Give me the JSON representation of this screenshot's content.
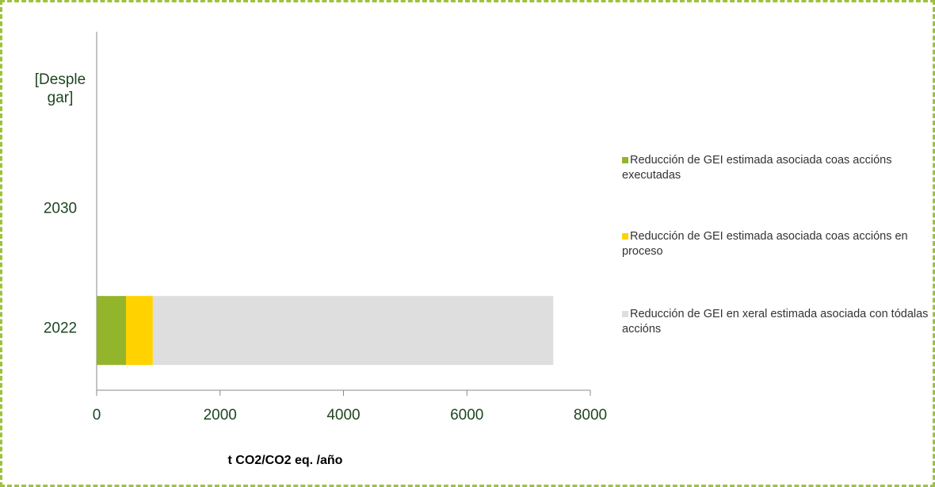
{
  "chart_data": {
    "type": "stacked_barh",
    "categories": [
      "2022",
      "2030",
      "[Desplegar]"
    ],
    "series": [
      {
        "name": "Reducción de GEI estimada asociada coas accións executadas",
        "color": "#93b52b",
        "values": [
          475,
          null,
          null
        ]
      },
      {
        "name": "Reducción de GEI estimada asociada coas accións en proceso",
        "color": "#ffd200",
        "values": [
          435,
          null,
          null
        ]
      },
      {
        "name": "Reducción de GEI en xeral estimada asociada con tódalas accións",
        "color": "#dedede",
        "values": [
          6490,
          null,
          null
        ]
      }
    ],
    "xlabel": "t CO2/CO2 eq. /año",
    "xlim": [
      0,
      8000
    ],
    "xticks": [
      0,
      2000,
      4000,
      6000,
      8000
    ],
    "legend": "right"
  }
}
